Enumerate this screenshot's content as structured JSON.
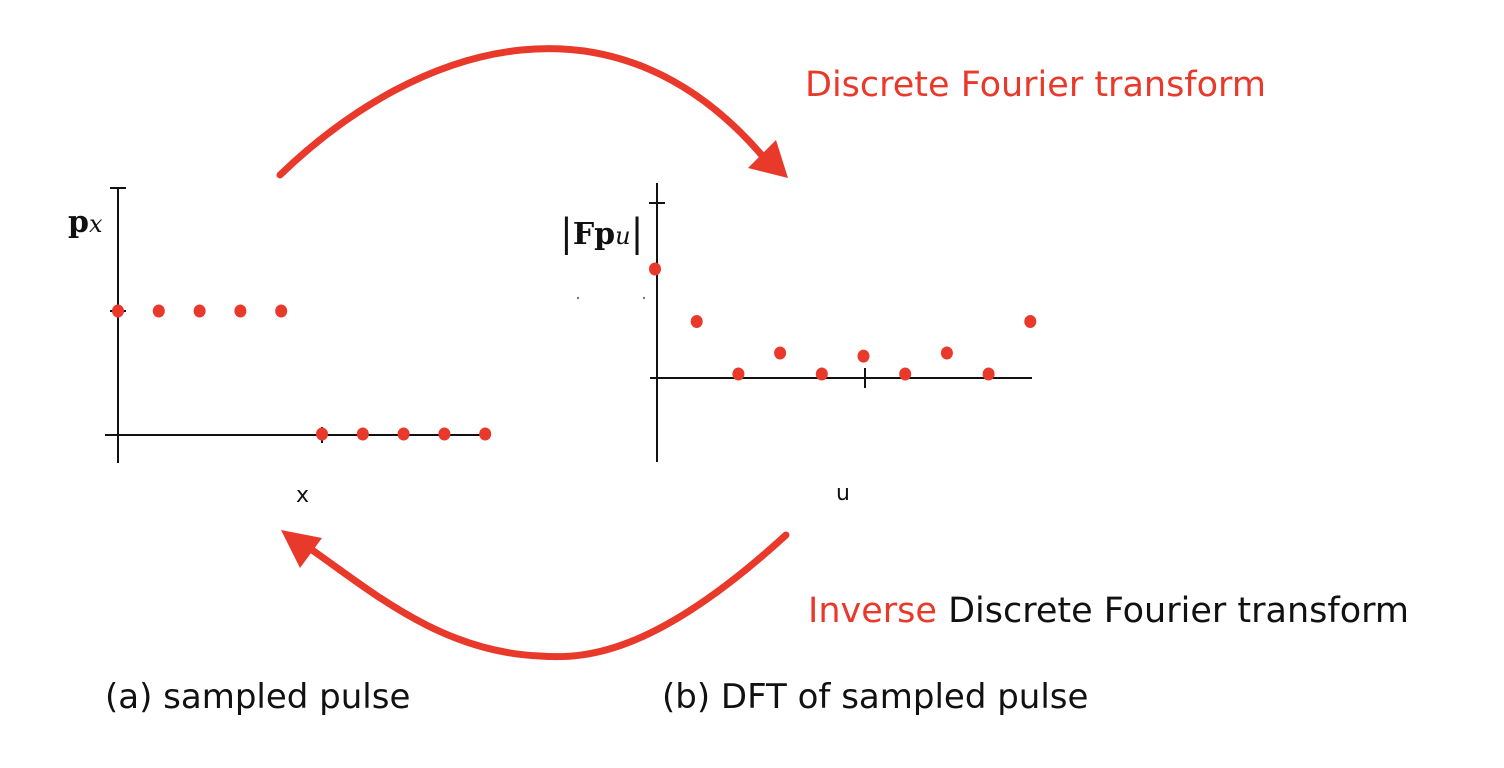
{
  "titles": {
    "forward": "Discrete Fourier transform",
    "inverse_highlight": "Inverse",
    "inverse_rest": "Discrete Fourier transform"
  },
  "captions": {
    "left": "(a) sampled pulse",
    "right": "(b) DFT of sampled pulse"
  },
  "plot_left": {
    "y_symbol_bold": "p",
    "y_symbol_sub": "x",
    "x_label": "x",
    "values": [
      1,
      1,
      1,
      1,
      1,
      0,
      0,
      0,
      0,
      0
    ]
  },
  "plot_right": {
    "y_symbol_bold": "Fp",
    "y_symbol_sub": "u",
    "bar": "|",
    "x_label": "u",
    "values": [
      1,
      0.5,
      0,
      0.2,
      0,
      0.17,
      0,
      0.2,
      0,
      0.5
    ]
  },
  "colors": {
    "accent": "#e8392b",
    "axis": "#111111"
  }
}
